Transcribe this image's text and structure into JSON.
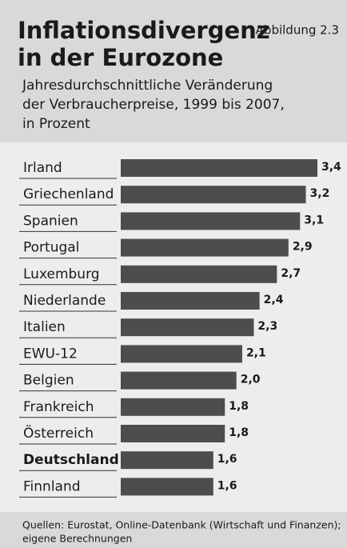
{
  "chart_data": {
    "type": "bar",
    "orientation": "horizontal",
    "title": [
      "Inflationsdivergenz",
      "in der Eurozone"
    ],
    "figure_label": "Abbildung 2.3",
    "subtitle": [
      "Jahresdurchschnittliche Veränderung",
      "der Verbraucherpreise, 1999 bis 2007,",
      "in Prozent"
    ],
    "categories": [
      "Irland",
      "Griechenland",
      "Spanien",
      "Portugal",
      "Luxemburg",
      "Niederlande",
      "Italien",
      "EWU-12",
      "Belgien",
      "Frankreich",
      "Österreich",
      "Deutschland",
      "Finnland"
    ],
    "values": [
      3.4,
      3.2,
      3.1,
      2.9,
      2.7,
      2.4,
      2.3,
      2.1,
      2.0,
      1.8,
      1.8,
      1.6,
      1.6
    ],
    "value_labels": [
      "3,4",
      "3,2",
      "3,1",
      "2,9",
      "2,7",
      "2,4",
      "2,3",
      "2,1",
      "2,0",
      "1,8",
      "1,8",
      "1,6",
      "1,6"
    ],
    "color": "#4d4d4d",
    "highlight": "Deutschland",
    "source": [
      "Quellen: Eurostat, Online-Datenbank (Wirtschaft und Finanzen);",
      "eigene Berechnungen"
    ]
  }
}
